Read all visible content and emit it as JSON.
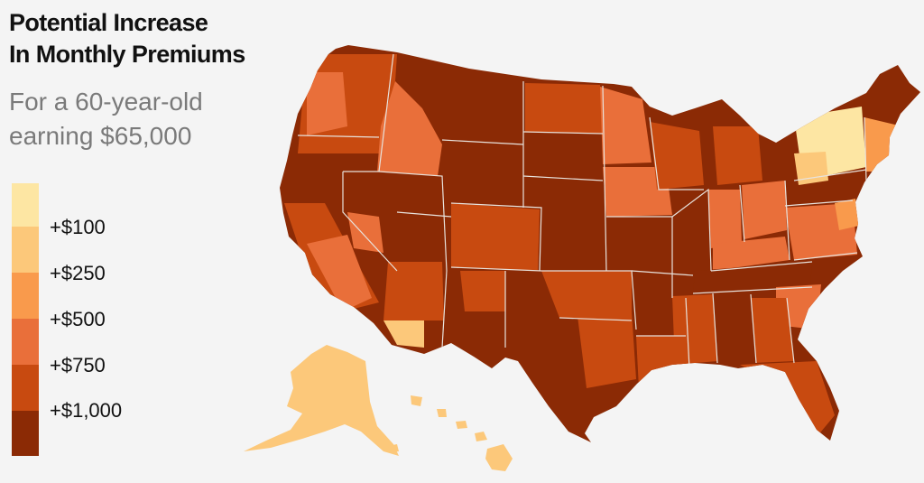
{
  "title": {
    "line1": "Potential Increase",
    "line2": "In Monthly Premiums"
  },
  "subtitle": {
    "line1": "For a 60-year-old",
    "line2": "earning $65,000"
  },
  "legend": {
    "colors": [
      "#fde6a3",
      "#fcc87a",
      "#f99a4c",
      "#e96f3a",
      "#c84a10",
      "#8b2a05"
    ],
    "labels": [
      "+$100",
      "+$250",
      "+$500",
      "+$750",
      "+$1,000"
    ]
  },
  "map": {
    "layers": [
      "contiguous-us",
      "alaska",
      "hawaii"
    ],
    "state_borders_color": "#e8e2dc"
  }
}
